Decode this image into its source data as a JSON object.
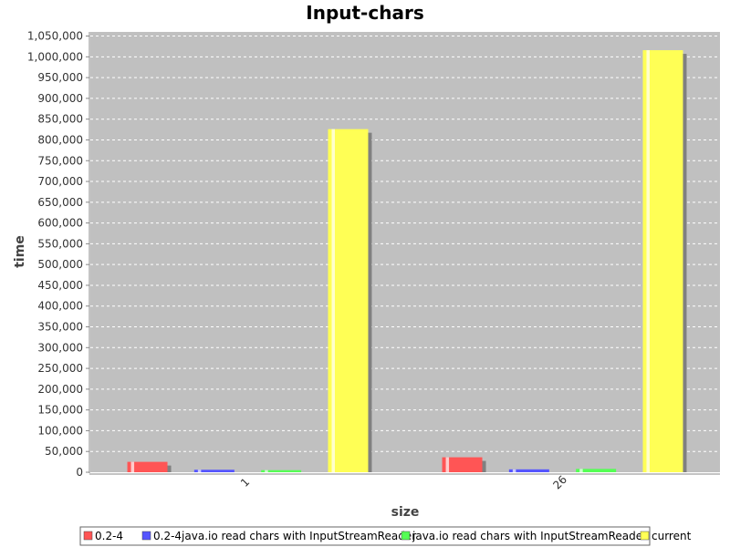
{
  "chart_data": {
    "type": "bar",
    "title": "Input-chars",
    "xlabel": "size",
    "ylabel": "time",
    "categories": [
      "1",
      "26"
    ],
    "ylim": [
      0,
      1060000
    ],
    "ytick_step": 50000,
    "grid": true,
    "legend_placement": "bottom",
    "plot_background": "#c0c0c0",
    "series": [
      {
        "name": "0.2-4",
        "color": "#ff5555",
        "values": [
          25000,
          36000
        ]
      },
      {
        "name": "0.2-4java.io read chars with InputStreamReader",
        "color": "#5555ff",
        "values": [
          6000,
          7000
        ]
      },
      {
        "name": "java.io read chars with InputStreamReader",
        "color": "#55ff55",
        "values": [
          5000,
          8000
        ]
      },
      {
        "name": "current",
        "color": "#ffff55",
        "values": [
          826000,
          1016000
        ]
      }
    ]
  }
}
